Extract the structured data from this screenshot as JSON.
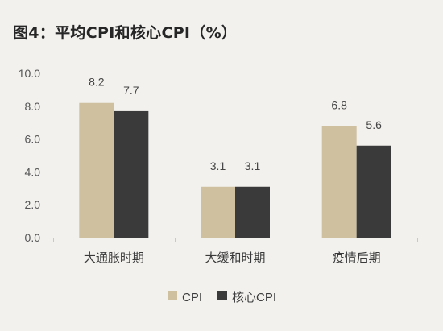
{
  "chart_data": {
    "type": "bar",
    "title": "图4：平均CPI和核心CPI（%）",
    "xlabel": "",
    "ylabel": "",
    "categories": [
      "大通胀时期",
      "大缓和时期",
      "疫情后期"
    ],
    "series": [
      {
        "name": "CPI",
        "values": [
          8.2,
          3.1,
          6.8
        ],
        "color": "#cfc0a0"
      },
      {
        "name": "核心CPI",
        "values": [
          7.7,
          3.1,
          5.6
        ],
        "color": "#3a3a3a"
      }
    ],
    "data_labels": [
      [
        "8.2",
        "3.1",
        "6.8"
      ],
      [
        "7.7",
        "3.1",
        "5.6"
      ]
    ],
    "ylim": [
      0,
      10
    ],
    "yticks": [
      "0.0",
      "2.0",
      "4.0",
      "6.0",
      "8.0",
      "10.0"
    ],
    "grid": false,
    "legend_position": "bottom-center"
  }
}
